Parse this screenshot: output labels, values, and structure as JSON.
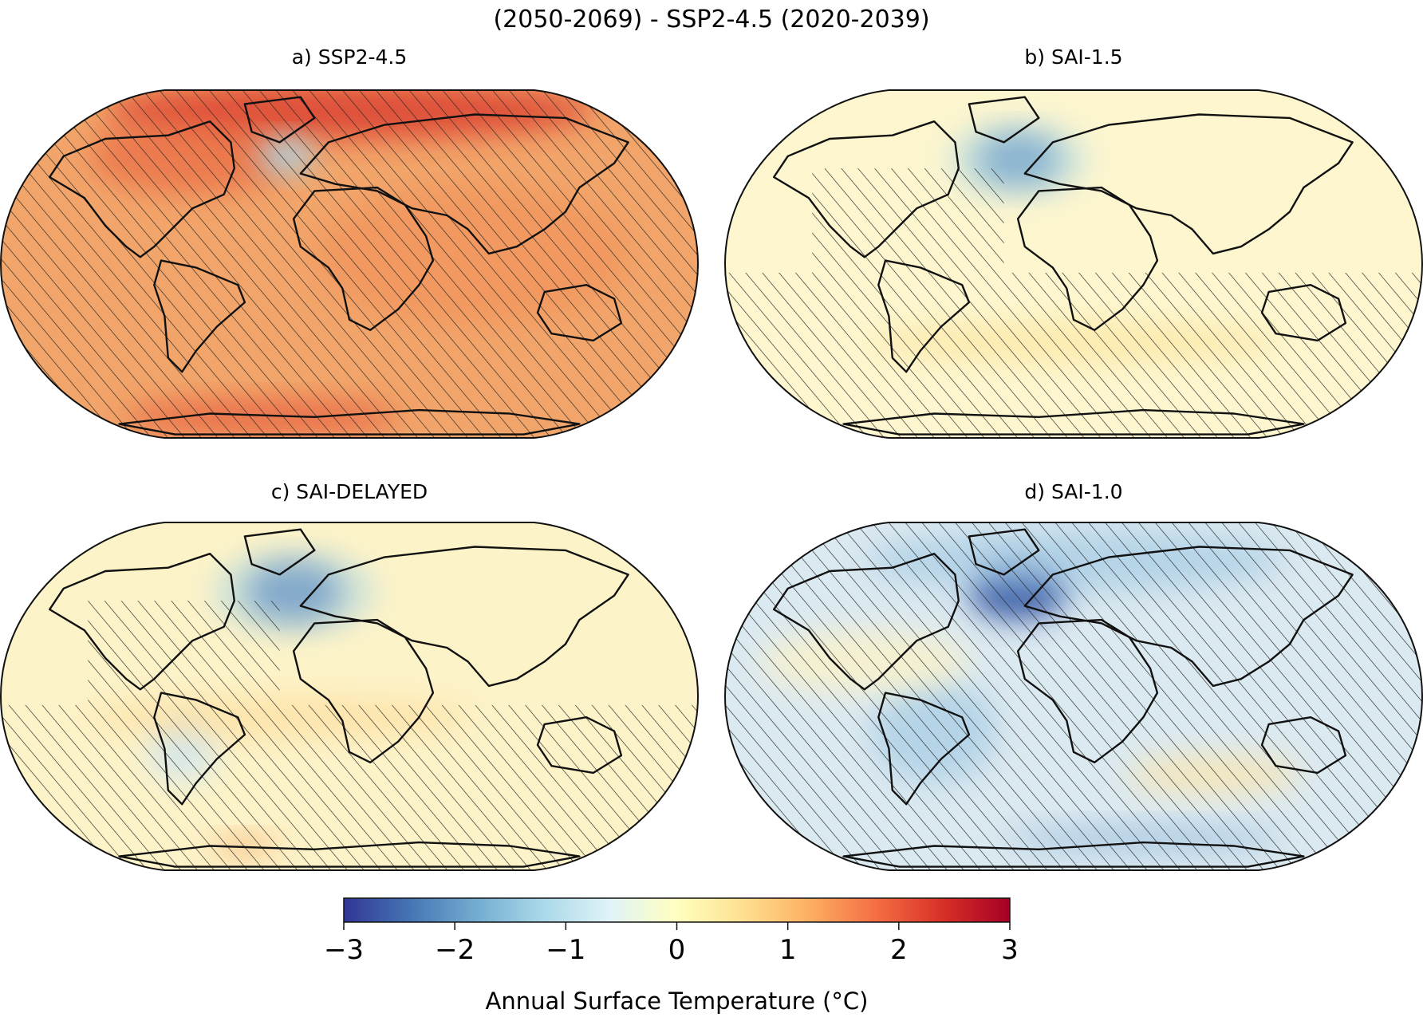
{
  "figure": {
    "title": "(2050-2069) - SSP2-4.5 (2020-2039)"
  },
  "panels": [
    {
      "id": "a",
      "title": "a) SSP2-4.5",
      "base": "#f2a56a",
      "hatched": "all"
    },
    {
      "id": "b",
      "title": "b) SAI-1.5",
      "base": "#fdf6cf",
      "hatched": "partial"
    },
    {
      "id": "c",
      "title": "c) SAI-DELAYED",
      "base": "#fdf3c8",
      "hatched": "partial"
    },
    {
      "id": "d",
      "title": "d) SAI-1.0",
      "base": "#dbe9f0",
      "hatched": "most"
    }
  ],
  "colorbar": {
    "label": "Annual Surface Temperature (°C)",
    "min": -3,
    "max": 3,
    "ticks": [
      "−3",
      "−2",
      "−1",
      "0",
      "1",
      "2",
      "3"
    ],
    "colormap": "RdYlBu_r",
    "colors": [
      "#313695",
      "#4575b4",
      "#74add1",
      "#abd9e9",
      "#e0f3f8",
      "#ffffbf",
      "#fee090",
      "#fdae61",
      "#f46d43",
      "#d73027",
      "#a50026"
    ]
  },
  "chart_data": {
    "type": "heatmap",
    "title": "(2050-2069) - SSP2-4.5 (2020-2039)",
    "projection": "Robinson",
    "variable": "Annual Surface Temperature (°C)",
    "vmin": -3,
    "vmax": 3,
    "panels": [
      "a) SSP2-4.5",
      "b) SAI-1.5",
      "c) SAI-DELAYED",
      "d) SAI-1.0"
    ]
  }
}
